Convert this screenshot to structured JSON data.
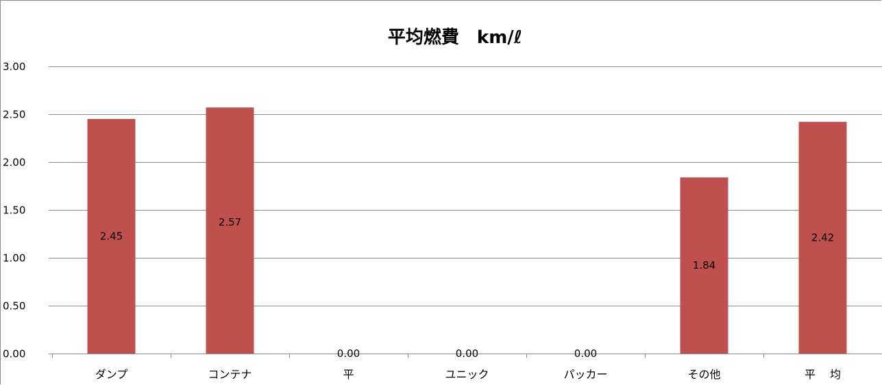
{
  "chart_data": {
    "type": "bar",
    "title": "平均燃費　km/ℓ",
    "categories": [
      "ダンプ",
      "コンテナ",
      "平",
      "ユニック",
      "パッカー",
      "その他",
      "平　 均"
    ],
    "values": [
      2.45,
      2.57,
      0.0,
      0.0,
      0.0,
      1.84,
      2.42
    ],
    "data_labels": [
      "2.45",
      "2.57",
      "0.00",
      "0.00",
      "0.00",
      "1.84",
      "2.42"
    ],
    "y_ticks": [
      "0.00",
      "0.50",
      "1.00",
      "1.50",
      "2.00",
      "2.50",
      "3.00"
    ],
    "ylim": [
      0,
      3
    ],
    "xlabel": "",
    "ylabel": "",
    "grid": true,
    "legend": "none",
    "bar_color": "#c0504d",
    "gridline_color": "#8c8c8c"
  }
}
